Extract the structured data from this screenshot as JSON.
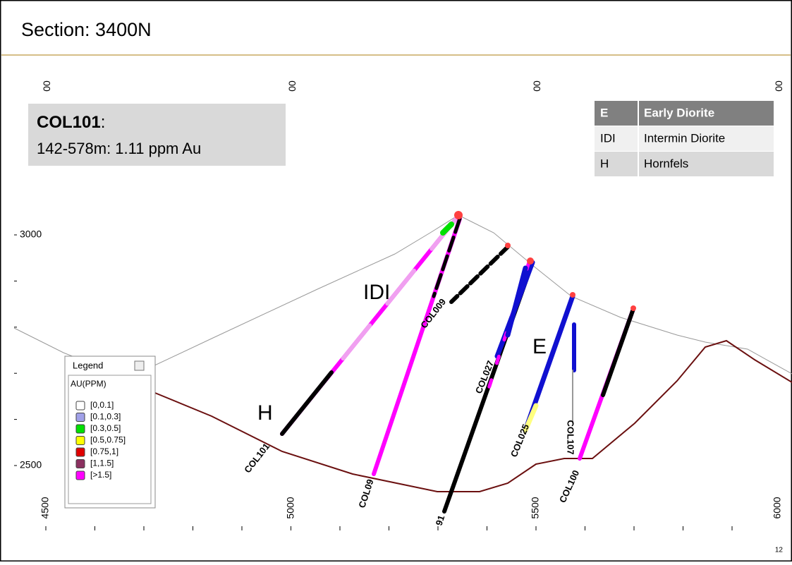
{
  "title": "Section: 3400N",
  "callout": {
    "hole": "COL101",
    "separator": ":",
    "text": "142-578m: 1.11 ppm Au"
  },
  "lithology_table": {
    "rows": [
      [
        "E",
        "Early Diorite"
      ],
      [
        "IDI",
        "Intermin Diorite"
      ],
      [
        "H",
        "Hornfels"
      ]
    ]
  },
  "section": {
    "top_labels": [
      "00",
      "00",
      "00",
      "00"
    ],
    "x_labels": [
      "4500",
      "5000",
      "5500",
      "6000"
    ],
    "y_labels": [
      "3000",
      "2500"
    ],
    "unit_labels": [
      "IDI",
      "E",
      "H"
    ],
    "holes": [
      "COL101",
      "COL09",
      "COL009",
      "COL027",
      "COL025",
      "COL100",
      "COL107",
      "91"
    ]
  },
  "legend": {
    "title": "Legend",
    "field": "AU(PPM)",
    "items": [
      {
        "label": "[0,0.1]",
        "color": "#ffffff"
      },
      {
        "label": "[0.1,0.3]",
        "color": "#a0a0e8"
      },
      {
        "label": "[0.3,0.5]",
        "color": "#00e000"
      },
      {
        "label": "[0.5,0.75]",
        "color": "#ffff00"
      },
      {
        "label": "[0.75,1]",
        "color": "#e00000"
      },
      {
        "label": "[1,1.5]",
        "color": "#8b3060"
      },
      {
        "label": "[>1.5]",
        "color": "#ff00ff"
      }
    ]
  },
  "page_number": "12"
}
